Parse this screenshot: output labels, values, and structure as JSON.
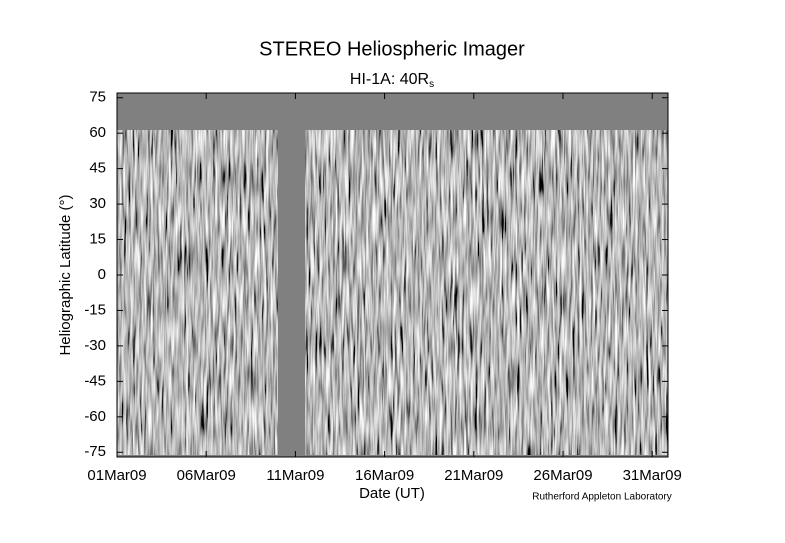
{
  "chart_data": {
    "type": "latitude-time-map",
    "title": "STEREO Heliospheric Imager",
    "subtitle": "HI-1A: 40R",
    "subtitle_subscript": "s",
    "x_label": "Date (UT)",
    "y_label": "Heliographic Latitude (°)",
    "credit": "Rutherford Appleton Laboratory",
    "categories": [
      "01Mar09",
      "06Mar09",
      "11Mar09",
      "16Mar09",
      "21Mar09",
      "26Mar09",
      "31Mar09"
    ],
    "ylim": [
      -77,
      77
    ],
    "yticks": [
      -75,
      -60,
      -45,
      -30,
      -15,
      0,
      15,
      30,
      45,
      60,
      75
    ]
  }
}
